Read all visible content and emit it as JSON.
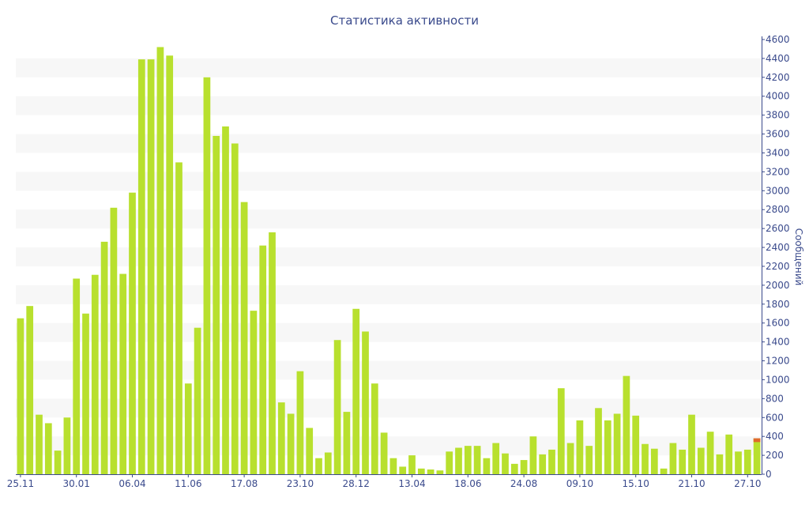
{
  "colors": {
    "bar": "#b8e02e",
    "highlight": "#e06a2e",
    "band": "#f7f7f7",
    "axis": "#3a4a8c",
    "text": "#3a4a8c"
  },
  "chart_data": {
    "type": "bar",
    "title": "Статистика активности",
    "ylabel": "Сообщений",
    "xlabel": "",
    "ylim": [
      0,
      4600
    ],
    "yticks": [
      0,
      200,
      400,
      600,
      800,
      1000,
      1200,
      1400,
      1600,
      1800,
      2000,
      2200,
      2400,
      2600,
      2800,
      3000,
      3200,
      3400,
      3600,
      3800,
      4000,
      4200,
      4400,
      4600
    ],
    "grid": "alternating horizontal bands",
    "y_axis_position": "right",
    "legend": "none",
    "x_tick_labels": [
      {
        "index": 0,
        "label": "25.11"
      },
      {
        "index": 6,
        "label": "30.01"
      },
      {
        "index": 12,
        "label": "06.04"
      },
      {
        "index": 18,
        "label": "11.06"
      },
      {
        "index": 24,
        "label": "17.08"
      },
      {
        "index": 30,
        "label": "23.10"
      },
      {
        "index": 36,
        "label": "28.12"
      },
      {
        "index": 42,
        "label": "13.04"
      },
      {
        "index": 48,
        "label": "18.06"
      },
      {
        "index": 54,
        "label": "24.08"
      },
      {
        "index": 60,
        "label": "09.10"
      },
      {
        "index": 66,
        "label": "15.10"
      },
      {
        "index": 72,
        "label": "21.10"
      },
      {
        "index": 78,
        "label": "27.10"
      }
    ],
    "values": [
      1650,
      1780,
      630,
      540,
      250,
      600,
      2070,
      1700,
      2110,
      2460,
      2820,
      2120,
      2980,
      4390,
      4390,
      4520,
      4430,
      3300,
      960,
      1550,
      4200,
      3580,
      3680,
      3500,
      2880,
      1730,
      2420,
      2560,
      760,
      640,
      1090,
      490,
      170,
      230,
      1420,
      660,
      1750,
      1510,
      960,
      440,
      170,
      80,
      200,
      60,
      50,
      40,
      240,
      280,
      300,
      300,
      170,
      330,
      220,
      110,
      150,
      400,
      210,
      260,
      910,
      330,
      570,
      300,
      700,
      570,
      640,
      1040,
      620,
      320,
      270,
      60,
      330,
      260,
      630,
      280,
      450,
      210,
      420,
      240,
      260,
      380
    ],
    "highlight_segment": {
      "index": 79,
      "value": 40
    }
  }
}
